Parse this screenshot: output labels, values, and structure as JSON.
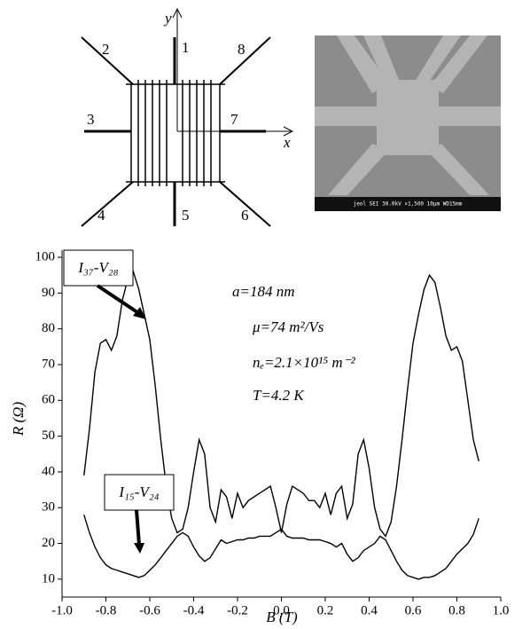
{
  "diagram": {
    "axis_y": "y",
    "axis_x": "x",
    "leads": [
      "1",
      "2",
      "3",
      "4",
      "5",
      "6",
      "7",
      "8"
    ]
  },
  "sem_caption": "jeol SEI 30.0kV ×1,500 10μm WD15mm",
  "chart_data": {
    "type": "line",
    "xlabel": "B (T)",
    "ylabel": "R (Ω)",
    "annotations": [
      "a=184 nm",
      "μ=74 m²/Vs",
      "nₑ=2.1×10¹⁵ m⁻²",
      "T=4.2 K"
    ],
    "xlim": [
      -1.0,
      1.0
    ],
    "xticks": [
      {
        "value": -1.0,
        "label": "-1.0"
      },
      -0.8,
      -0.6,
      -0.4,
      -0.2,
      {
        "value": 0.0,
        "label": "0.0"
      },
      0.2,
      0.4,
      0.6,
      0.8,
      {
        "value": 1.0,
        "label": "1.0"
      }
    ],
    "ylim": [
      5,
      102
    ],
    "yticks": [
      10,
      20,
      30,
      40,
      50,
      60,
      70,
      80,
      90,
      100
    ],
    "x": [
      -0.9,
      -0.875,
      -0.85,
      -0.825,
      -0.8,
      -0.775,
      -0.75,
      -0.725,
      -0.7,
      -0.675,
      -0.65,
      -0.625,
      -0.6,
      -0.575,
      -0.55,
      -0.525,
      -0.5,
      -0.475,
      -0.45,
      -0.425,
      -0.4,
      -0.375,
      -0.35,
      -0.325,
      -0.3,
      -0.275,
      -0.25,
      -0.225,
      -0.2,
      -0.175,
      -0.15,
      -0.125,
      -0.1,
      -0.075,
      -0.05,
      -0.025,
      0,
      0.025,
      0.05,
      0.075,
      0.1,
      0.125,
      0.15,
      0.175,
      0.2,
      0.225,
      0.25,
      0.275,
      0.3,
      0.325,
      0.35,
      0.375,
      0.4,
      0.425,
      0.45,
      0.475,
      0.5,
      0.525,
      0.55,
      0.575,
      0.6,
      0.625,
      0.65,
      0.675,
      0.7,
      0.725,
      0.75,
      0.775,
      0.8,
      0.825,
      0.85,
      0.875,
      0.9
    ],
    "series": [
      {
        "name": "I₃₇-V₂₈",
        "color": "#000000",
        "values": [
          39,
          52,
          68,
          76,
          77,
          74,
          78,
          88,
          94,
          96,
          91,
          84,
          77,
          64,
          49,
          36,
          27,
          23,
          24,
          30,
          40,
          49,
          45,
          30,
          26,
          35,
          33,
          27,
          34,
          30,
          32,
          33,
          34,
          35,
          36,
          30,
          23,
          31,
          36,
          35,
          34,
          32,
          32,
          30,
          34,
          28,
          34,
          36,
          27,
          31,
          45,
          49,
          41,
          30,
          24,
          22,
          26,
          36,
          49,
          63,
          76,
          84,
          91,
          95,
          93,
          86,
          78,
          74,
          75,
          71,
          60,
          49,
          43
        ]
      },
      {
        "name": "I₁₅-V₂₄",
        "color": "#000000",
        "values": [
          28,
          23,
          19,
          16,
          14,
          13,
          12.5,
          12,
          11.5,
          11,
          10.5,
          11,
          12.5,
          14,
          16,
          18,
          20,
          22,
          23,
          22,
          19,
          16.5,
          15,
          16,
          18.5,
          21,
          20,
          20.5,
          21,
          21,
          21.5,
          21.5,
          22,
          22,
          22,
          23,
          24,
          22,
          21.5,
          21.5,
          21.5,
          21,
          21,
          21,
          20.5,
          20,
          19,
          20,
          17,
          15,
          16,
          18,
          19,
          20,
          22,
          21,
          18,
          15,
          12.5,
          11,
          10.5,
          10,
          10.5,
          10.5,
          11,
          12,
          13,
          15,
          17,
          18.5,
          20,
          22.5,
          27
        ]
      }
    ]
  }
}
